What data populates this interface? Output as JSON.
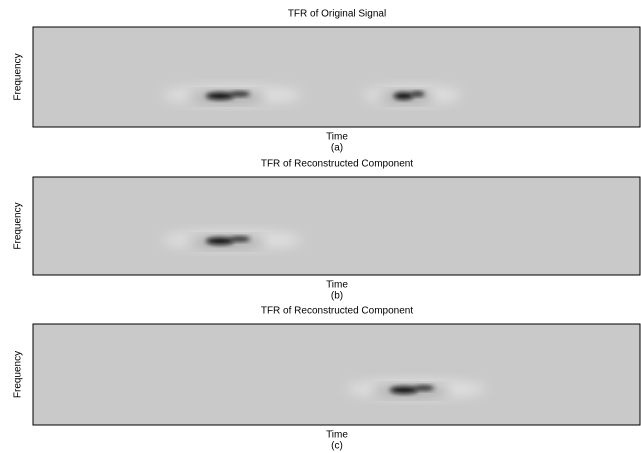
{
  "panels": [
    {
      "title": "TFR of Original Signal",
      "xlabel": "Time",
      "ylabel": "Frequency",
      "caption": "(a)"
    },
    {
      "title": "TFR of Reconstructed Component",
      "xlabel": "Time",
      "ylabel": "Frequency",
      "caption": "(b)"
    },
    {
      "title": "TFR of Reconstructed Component",
      "xlabel": "Time",
      "ylabel": "Frequency",
      "caption": "(c)"
    }
  ]
}
